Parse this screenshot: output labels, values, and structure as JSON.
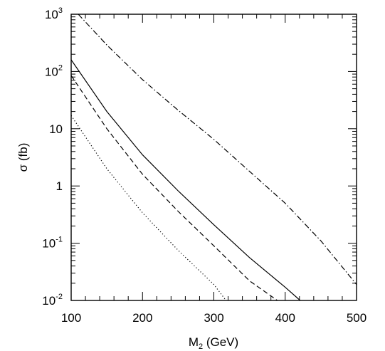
{
  "chart_data": {
    "type": "line",
    "title": "",
    "xlabel": {
      "base": "M",
      "sub": "2",
      "rest": " (GeV)"
    },
    "ylabel": "σ (fb)",
    "xlim": [
      100,
      500
    ],
    "ylim": [
      0.01,
      1000
    ],
    "yscale": "log",
    "grid": false,
    "x_ticks": [
      {
        "value": 100,
        "label": "100"
      },
      {
        "value": 200,
        "label": "200"
      },
      {
        "value": 300,
        "label": "300"
      },
      {
        "value": 400,
        "label": "400"
      },
      {
        "value": 500,
        "label": "500"
      }
    ],
    "y_ticks": [
      {
        "value": 0.01,
        "base": "10",
        "exp": "-2"
      },
      {
        "value": 0.1,
        "base": "10",
        "exp": "-1"
      },
      {
        "value": 1,
        "base": "1",
        "exp": ""
      },
      {
        "value": 10,
        "base": "10",
        "exp": ""
      },
      {
        "value": 100,
        "base": "10",
        "exp": "2"
      },
      {
        "value": 1000,
        "base": "10",
        "exp": "3"
      }
    ],
    "series": [
      {
        "style": "dash-dot",
        "x": [
          110,
          150,
          200,
          250,
          300,
          350,
          400,
          450,
          500
        ],
        "y": [
          1000,
          290,
          72,
          21,
          6.5,
          1.8,
          0.5,
          0.11,
          0.019
        ]
      },
      {
        "style": "solid",
        "x": [
          100,
          150,
          200,
          250,
          300,
          350,
          400,
          421
        ],
        "y": [
          160,
          20,
          3.5,
          0.82,
          0.21,
          0.056,
          0.017,
          0.01
        ]
      },
      {
        "style": "dashed",
        "x": [
          100,
          150,
          200,
          250,
          300,
          350,
          389
        ],
        "y": [
          85,
          10,
          1.6,
          0.36,
          0.09,
          0.022,
          0.01
        ]
      },
      {
        "style": "dotted",
        "x": [
          100,
          150,
          200,
          250,
          300,
          317
        ],
        "y": [
          17,
          2.0,
          0.34,
          0.075,
          0.019,
          0.01
        ]
      }
    ]
  }
}
